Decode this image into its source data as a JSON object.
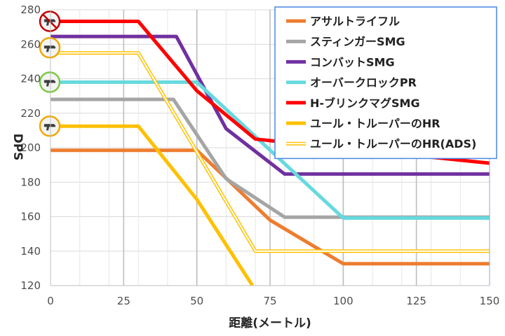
{
  "chart_data": {
    "type": "line",
    "title": "",
    "xlabel": "距離(メートル)",
    "ylabel": "DPS",
    "xlim": [
      0,
      150
    ],
    "ylim": [
      120,
      280
    ],
    "xticks": [
      0,
      25,
      50,
      75,
      100,
      125,
      150
    ],
    "yticks": [
      120,
      140,
      160,
      180,
      200,
      220,
      240,
      260,
      280
    ],
    "grid": true,
    "legend_position": "top-right",
    "series": [
      {
        "name": "アサルトライフル",
        "color": "#ED7D31",
        "style": "solid",
        "x": [
          0,
          50,
          75,
          100,
          150
        ],
        "y": [
          198.5,
          198.5,
          158,
          132.7,
          132.7
        ]
      },
      {
        "name": "スティンガーSMG",
        "color": "#A5A5A5",
        "style": "solid",
        "x": [
          0,
          42,
          60,
          80,
          150
        ],
        "y": [
          228,
          228,
          182,
          159.7,
          159.7
        ]
      },
      {
        "name": "コンバットSMG",
        "color": "#7030A0",
        "style": "solid",
        "x": [
          0,
          43,
          60,
          80,
          150
        ],
        "y": [
          264.5,
          264.5,
          211,
          184.7,
          184.7
        ]
      },
      {
        "name": "オーバークロックPR",
        "color": "#66D9DE",
        "style": "solid",
        "x": [
          0,
          50,
          100,
          150
        ],
        "y": [
          238,
          238,
          159.2,
          159.2
        ]
      },
      {
        "name": "H-ブリンクマグSMG",
        "color": "#FF0000",
        "style": "solid",
        "x": [
          0,
          30,
          50,
          70,
          150
        ],
        "y": [
          273.3,
          273.3,
          233,
          205,
          191
        ]
      },
      {
        "name": "ユール・トルーパーのHR",
        "color": "#FFC000",
        "style": "solid",
        "x": [
          0,
          30,
          50,
          69
        ],
        "y": [
          212.5,
          212.5,
          170,
          120
        ]
      },
      {
        "name": "ユール・トルーパーのHR(ADS)",
        "color": "#FFC000",
        "style": "double",
        "x": [
          0,
          30,
          70,
          150
        ],
        "y": [
          255,
          255,
          140,
          140
        ]
      }
    ]
  }
}
